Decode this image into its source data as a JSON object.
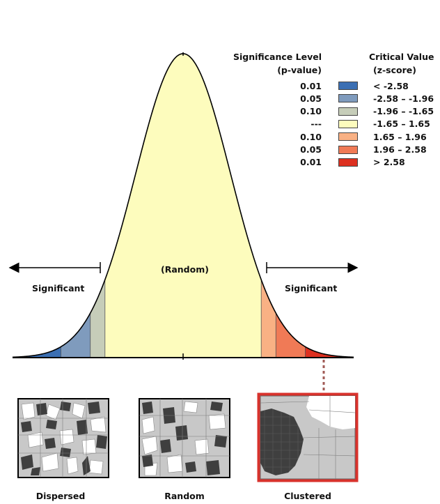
{
  "legend": {
    "sig_header_line1": "Significance Level",
    "sig_header_line2": "(p-value)",
    "crit_header_line1": "Critical Value",
    "crit_header_line2": "(z-score)",
    "rows": [
      {
        "p": "0.01",
        "z": "< -2.58",
        "color": "#3b6fb3"
      },
      {
        "p": "0.05",
        "z": "-2.58 – -1.96",
        "color": "#7f9bbd"
      },
      {
        "p": "0.10",
        "z": "-1.96 – -1.65",
        "color": "#c6cdb9"
      },
      {
        "p": "---",
        "z": "-1.65 – 1.65",
        "color": "#fdfcbd"
      },
      {
        "p": "0.10",
        "z": "1.65 – 1.96",
        "color": "#f9b184"
      },
      {
        "p": "0.05",
        "z": "1.96 – 2.58",
        "color": "#f07a56"
      },
      {
        "p": "0.01",
        "z": "> 2.58",
        "color": "#dd3020"
      }
    ]
  },
  "curve_labels": {
    "center": "(Random)",
    "left": "Significant",
    "right": "Significant"
  },
  "maps": [
    {
      "caption": "Dispersed"
    },
    {
      "caption": "Random"
    },
    {
      "caption": "Clustered"
    }
  ],
  "colors": {
    "highlight_border": "#d8322c",
    "map_dark": "#3f3f3f",
    "map_light": "#c8c8c8",
    "map_white": "#ffffff"
  }
}
